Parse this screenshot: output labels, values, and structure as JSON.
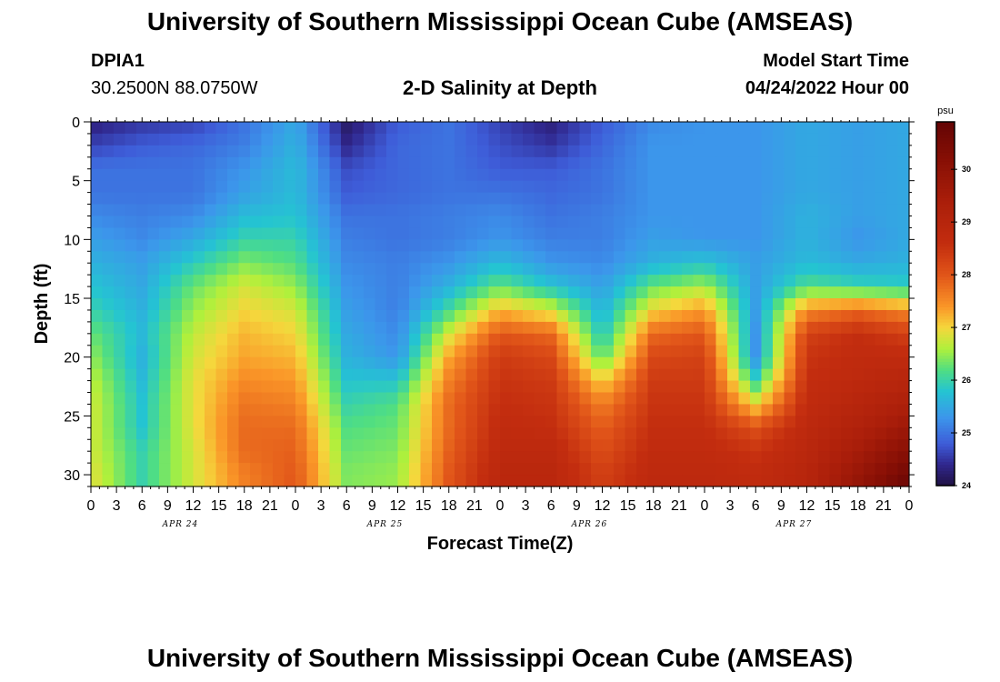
{
  "header": {
    "title": "University of Southern Mississippi Ocean Cube (AMSEAS)",
    "station_id": "DPIA1",
    "coordinates": "30.2500N  88.0750W",
    "subtitle": "2-D Salinity at Depth",
    "model_start_label": "Model Start Time",
    "model_start_value": "04/24/2022 Hour 00"
  },
  "footer": {
    "title": "University of Southern Mississippi Ocean Cube (AMSEAS)"
  },
  "chart_data": {
    "type": "heatmap",
    "title": "2-D Salinity at Depth",
    "xlabel": "Forecast Time(Z)",
    "ylabel": "Depth (ft)",
    "x_range_hours": [
      0,
      96
    ],
    "y_range": [
      0,
      31
    ],
    "y_reversed": true,
    "x_tick_labels": [
      "0",
      "3",
      "6",
      "9",
      "12",
      "15",
      "18",
      "21",
      "0",
      "3",
      "6",
      "9",
      "12",
      "15",
      "18",
      "21",
      "0",
      "3",
      "6",
      "9",
      "12",
      "15",
      "18",
      "21",
      "0",
      "3",
      "6",
      "9",
      "12",
      "15",
      "18",
      "21",
      "0"
    ],
    "date_labels": [
      {
        "label": "APR 24",
        "hour": 10.5
      },
      {
        "label": "APR 25",
        "hour": 34.5
      },
      {
        "label": "APR 26",
        "hour": 58.5
      },
      {
        "label": "APR 27",
        "hour": 82.5
      }
    ],
    "y_ticks": [
      0,
      5,
      10,
      15,
      20,
      25,
      30
    ],
    "colorbar": {
      "unit": "psu",
      "min": 24,
      "max": 30.9,
      "ticks": [
        24,
        25,
        26,
        27,
        28,
        29,
        30
      ]
    },
    "depths_ft": [
      0,
      2,
      4,
      6,
      8,
      10,
      12,
      14,
      16,
      18,
      20,
      22,
      24,
      26,
      28,
      30,
      31
    ],
    "times_hours": [
      0,
      6,
      12,
      18,
      24,
      30,
      36,
      42,
      48,
      54,
      60,
      66,
      72,
      78,
      84,
      90,
      96
    ],
    "salinity_psu": [
      [
        24.3,
        24.5,
        24.6,
        25.0,
        25.5,
        24.2,
        24.8,
        25.0,
        24.6,
        24.3,
        24.8,
        25.2,
        25.3,
        25.3,
        25.5,
        25.4,
        25.5
      ],
      [
        24.6,
        24.8,
        24.9,
        25.1,
        25.6,
        24.4,
        24.9,
        25.0,
        24.7,
        24.5,
        24.9,
        25.3,
        25.3,
        25.3,
        25.5,
        25.4,
        25.5
      ],
      [
        25.0,
        25.0,
        25.0,
        25.3,
        25.7,
        24.7,
        24.9,
        25.0,
        24.8,
        24.8,
        25.0,
        25.3,
        25.3,
        25.3,
        25.5,
        25.4,
        25.5
      ],
      [
        25.0,
        25.0,
        25.0,
        25.4,
        25.7,
        24.8,
        24.9,
        25.0,
        25.0,
        24.9,
        25.0,
        25.3,
        25.3,
        25.3,
        25.5,
        25.4,
        25.5
      ],
      [
        25.2,
        25.1,
        25.2,
        25.7,
        25.8,
        25.0,
        25.0,
        25.1,
        25.2,
        25.0,
        25.1,
        25.3,
        25.3,
        25.3,
        25.6,
        25.4,
        25.5
      ],
      [
        25.4,
        25.2,
        25.5,
        26.0,
        26.0,
        25.1,
        25.0,
        25.1,
        25.3,
        25.1,
        25.1,
        25.4,
        25.3,
        25.3,
        25.6,
        25.3,
        25.5
      ],
      [
        25.6,
        25.4,
        25.9,
        26.4,
        26.2,
        25.2,
        25.1,
        25.3,
        25.7,
        25.3,
        25.2,
        25.6,
        25.8,
        25.4,
        25.7,
        25.5,
        25.6
      ],
      [
        25.8,
        25.5,
        26.3,
        26.8,
        26.5,
        25.3,
        25.1,
        25.6,
        26.3,
        25.8,
        25.4,
        26.3,
        26.6,
        25.4,
        26.2,
        26.0,
        25.9
      ],
      [
        26.0,
        25.6,
        26.5,
        27.0,
        26.8,
        25.4,
        25.1,
        26.1,
        27.2,
        26.8,
        25.6,
        27.0,
        27.4,
        25.4,
        27.5,
        27.8,
        27.5
      ],
      [
        26.3,
        25.7,
        26.7,
        27.2,
        27.0,
        25.5,
        25.2,
        26.8,
        28.0,
        27.8,
        25.8,
        27.8,
        28.0,
        25.3,
        28.3,
        28.6,
        28.3
      ],
      [
        26.5,
        25.6,
        26.8,
        27.3,
        27.2,
        25.6,
        25.3,
        27.3,
        28.4,
        28.2,
        26.2,
        28.2,
        28.3,
        25.3,
        28.5,
        28.7,
        28.7
      ],
      [
        26.7,
        25.7,
        26.9,
        27.5,
        27.4,
        25.8,
        25.8,
        27.6,
        28.5,
        28.4,
        27.0,
        28.4,
        28.4,
        26.0,
        28.6,
        28.8,
        29.0
      ],
      [
        26.8,
        25.8,
        26.9,
        27.7,
        27.6,
        26.0,
        26.2,
        27.8,
        28.6,
        28.5,
        27.6,
        28.5,
        28.5,
        27.0,
        28.7,
        29.0,
        29.3
      ],
      [
        26.8,
        25.8,
        26.9,
        27.8,
        27.8,
        26.2,
        26.3,
        27.8,
        28.7,
        28.6,
        27.9,
        28.6,
        28.6,
        28.1,
        28.8,
        29.2,
        29.7
      ],
      [
        26.8,
        26.0,
        26.8,
        27.8,
        27.9,
        26.3,
        26.4,
        27.9,
        28.8,
        28.8,
        28.1,
        28.7,
        28.7,
        28.5,
        28.9,
        29.5,
        30.2
      ],
      [
        26.9,
        26.0,
        26.8,
        27.6,
        28.0,
        26.4,
        26.5,
        28.0,
        28.9,
        28.9,
        28.3,
        28.8,
        28.8,
        28.7,
        29.0,
        29.8,
        30.6
      ],
      [
        26.9,
        26.0,
        26.8,
        27.6,
        28.0,
        26.4,
        26.5,
        28.0,
        28.9,
        28.9,
        28.3,
        28.8,
        28.8,
        28.7,
        29.0,
        29.9,
        30.8
      ]
    ]
  }
}
